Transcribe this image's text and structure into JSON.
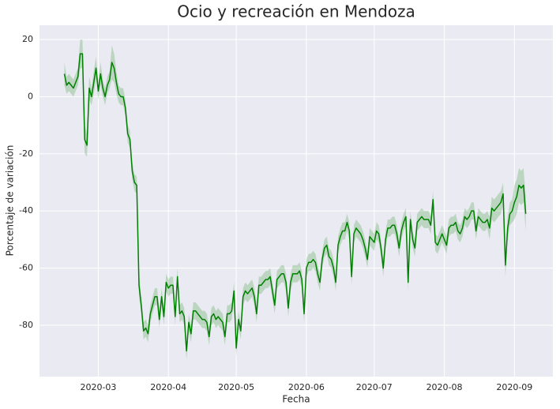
{
  "chart_data": {
    "type": "line",
    "title": "Ocio y recreación en Mendoza",
    "xlabel": "Fecha",
    "ylabel": "Porcentaje de variación",
    "color": "green",
    "band_color": "rgba(0,128,0,0.2)",
    "grid": true,
    "xlim": [
      "2020-02-04",
      "2020-09-18"
    ],
    "xticks": [
      {
        "value": "2020-03-01",
        "label": "2020-03"
      },
      {
        "value": "2020-04-01",
        "label": "2020-04"
      },
      {
        "value": "2020-05-01",
        "label": "2020-05"
      },
      {
        "value": "2020-06-01",
        "label": "2020-06"
      },
      {
        "value": "2020-07-01",
        "label": "2020-07"
      },
      {
        "value": "2020-08-01",
        "label": "2020-08"
      },
      {
        "value": "2020-09-01",
        "label": "2020-09"
      }
    ],
    "ylim": [
      -98,
      25
    ],
    "yticks": [
      -80,
      -60,
      -40,
      -20,
      0,
      20
    ],
    "x": [
      "2020-02-15",
      "2020-02-16",
      "2020-02-17",
      "2020-02-18",
      "2020-02-19",
      "2020-02-20",
      "2020-02-21",
      "2020-02-22",
      "2020-02-23",
      "2020-02-24",
      "2020-02-25",
      "2020-02-26",
      "2020-02-27",
      "2020-02-28",
      "2020-02-29",
      "2020-03-01",
      "2020-03-02",
      "2020-03-03",
      "2020-03-04",
      "2020-03-05",
      "2020-03-06",
      "2020-03-07",
      "2020-03-08",
      "2020-03-09",
      "2020-03-10",
      "2020-03-11",
      "2020-03-12",
      "2020-03-13",
      "2020-03-14",
      "2020-03-15",
      "2020-03-16",
      "2020-03-17",
      "2020-03-18",
      "2020-03-19",
      "2020-03-20",
      "2020-03-21",
      "2020-03-22",
      "2020-03-23",
      "2020-03-24",
      "2020-03-25",
      "2020-03-26",
      "2020-03-27",
      "2020-03-28",
      "2020-03-29",
      "2020-03-30",
      "2020-03-31",
      "2020-04-01",
      "2020-04-02",
      "2020-04-03",
      "2020-04-04",
      "2020-04-05",
      "2020-04-06",
      "2020-04-07",
      "2020-04-08",
      "2020-04-09",
      "2020-04-10",
      "2020-04-11",
      "2020-04-12",
      "2020-04-13",
      "2020-04-14",
      "2020-04-15",
      "2020-04-16",
      "2020-04-17",
      "2020-04-18",
      "2020-04-19",
      "2020-04-20",
      "2020-04-21",
      "2020-04-22",
      "2020-04-23",
      "2020-04-24",
      "2020-04-25",
      "2020-04-26",
      "2020-04-27",
      "2020-04-28",
      "2020-04-29",
      "2020-04-30",
      "2020-05-01",
      "2020-05-02",
      "2020-05-03",
      "2020-05-04",
      "2020-05-05",
      "2020-05-06",
      "2020-05-07",
      "2020-05-08",
      "2020-05-09",
      "2020-05-10",
      "2020-05-11",
      "2020-05-12",
      "2020-05-13",
      "2020-05-14",
      "2020-05-15",
      "2020-05-16",
      "2020-05-17",
      "2020-05-18",
      "2020-05-19",
      "2020-05-20",
      "2020-05-21",
      "2020-05-22",
      "2020-05-23",
      "2020-05-24",
      "2020-05-25",
      "2020-05-26",
      "2020-05-27",
      "2020-05-28",
      "2020-05-29",
      "2020-05-30",
      "2020-05-31",
      "2020-06-01",
      "2020-06-02",
      "2020-06-03",
      "2020-06-04",
      "2020-06-05",
      "2020-06-06",
      "2020-06-07",
      "2020-06-08",
      "2020-06-09",
      "2020-06-10",
      "2020-06-11",
      "2020-06-12",
      "2020-06-13",
      "2020-06-14",
      "2020-06-15",
      "2020-06-16",
      "2020-06-17",
      "2020-06-18",
      "2020-06-19",
      "2020-06-20",
      "2020-06-21",
      "2020-06-22",
      "2020-06-23",
      "2020-06-24",
      "2020-06-25",
      "2020-06-26",
      "2020-06-27",
      "2020-06-28",
      "2020-06-29",
      "2020-06-30",
      "2020-07-01",
      "2020-07-02",
      "2020-07-03",
      "2020-07-04",
      "2020-07-05",
      "2020-07-06",
      "2020-07-07",
      "2020-07-08",
      "2020-07-09",
      "2020-07-10",
      "2020-07-11",
      "2020-07-12",
      "2020-07-13",
      "2020-07-14",
      "2020-07-15",
      "2020-07-16",
      "2020-07-17",
      "2020-07-18",
      "2020-07-19",
      "2020-07-20",
      "2020-07-21",
      "2020-07-22",
      "2020-07-23",
      "2020-07-24",
      "2020-07-25",
      "2020-07-26",
      "2020-07-27",
      "2020-07-28",
      "2020-07-29",
      "2020-07-30",
      "2020-07-31",
      "2020-08-01",
      "2020-08-02",
      "2020-08-03",
      "2020-08-04",
      "2020-08-05",
      "2020-08-06",
      "2020-08-07",
      "2020-08-08",
      "2020-08-09",
      "2020-08-10",
      "2020-08-11",
      "2020-08-12",
      "2020-08-13",
      "2020-08-14",
      "2020-08-15",
      "2020-08-16",
      "2020-08-17",
      "2020-08-18",
      "2020-08-19",
      "2020-08-20",
      "2020-08-21",
      "2020-08-22",
      "2020-08-23",
      "2020-08-24",
      "2020-08-25",
      "2020-08-26",
      "2020-08-27",
      "2020-08-28",
      "2020-08-29",
      "2020-08-30",
      "2020-08-31",
      "2020-09-01",
      "2020-09-02",
      "2020-09-03",
      "2020-09-04",
      "2020-09-05",
      "2020-09-06"
    ],
    "values": [
      8,
      4,
      5,
      4,
      3,
      5,
      7,
      15,
      15,
      -15,
      -17,
      3,
      0,
      5,
      10,
      2,
      8,
      3,
      0,
      4,
      6,
      12,
      10,
      5,
      1,
      0,
      0,
      -4,
      -13,
      -15,
      -26,
      -30,
      -31,
      -66,
      -73,
      -82,
      -81,
      -83,
      -76,
      -73,
      -70,
      -70,
      -78,
      -70,
      -77,
      -65,
      -67,
      -66,
      -66,
      -77,
      -63,
      -76,
      -75,
      -77,
      -89,
      -79,
      -83,
      -75,
      -75,
      -76,
      -77,
      -78,
      -78,
      -79,
      -84,
      -77,
      -76,
      -78,
      -77,
      -78,
      -79,
      -84,
      -76,
      -76,
      -75,
      -68,
      -88,
      -78,
      -82,
      -70,
      -68,
      -69,
      -68,
      -67,
      -70,
      -76,
      -66,
      -66,
      -65,
      -64,
      -64,
      -63,
      -68,
      -73,
      -64,
      -63,
      -62,
      -62,
      -65,
      -74,
      -65,
      -62,
      -62,
      -62,
      -61,
      -64,
      -76,
      -60,
      -58,
      -58,
      -57,
      -58,
      -62,
      -65,
      -57,
      -53,
      -52,
      -56,
      -57,
      -60,
      -65,
      -52,
      -49,
      -47,
      -47,
      -44,
      -47,
      -63,
      -48,
      -46,
      -47,
      -48,
      -50,
      -53,
      -57,
      -49,
      -50,
      -51,
      -47,
      -48,
      -53,
      -60,
      -50,
      -46,
      -46,
      -45,
      -45,
      -48,
      -53,
      -47,
      -44,
      -42,
      -65,
      -43,
      -50,
      -53,
      -44,
      -43,
      -42,
      -43,
      -43,
      -43,
      -45,
      -36,
      -51,
      -52,
      -50,
      -48,
      -50,
      -52,
      -46,
      -45,
      -45,
      -44,
      -47,
      -48,
      -46,
      -42,
      -43,
      -42,
      -40,
      -40,
      -47,
      -42,
      -43,
      -44,
      -44,
      -43,
      -46,
      -39,
      -40,
      -39,
      -38,
      -37,
      -34,
      -59,
      -46,
      -41,
      -40,
      -37,
      -35,
      -31,
      -32,
      -31,
      -41
    ],
    "errors": [
      4,
      3,
      3,
      3,
      3,
      3,
      3,
      5,
      5,
      5,
      4,
      4,
      3,
      4,
      4,
      3,
      4,
      3,
      3,
      3,
      3,
      6,
      5,
      4,
      3,
      3,
      3,
      3,
      3,
      3,
      3,
      3,
      3,
      4,
      3,
      3,
      3,
      3,
      3,
      3,
      3,
      3,
      3,
      3,
      3,
      3,
      3,
      3,
      3,
      3,
      3,
      3,
      3,
      3,
      3,
      3,
      3,
      3,
      3,
      3,
      3,
      3,
      3,
      3,
      3,
      3,
      3,
      3,
      3,
      3,
      3,
      3,
      3,
      3,
      3,
      3,
      3,
      3,
      3,
      3,
      3,
      3,
      3,
      3,
      3,
      3,
      3,
      3,
      3,
      3,
      3,
      3,
      3,
      3,
      3,
      3,
      3,
      3,
      3,
      3,
      3,
      3,
      3,
      3,
      3,
      3,
      3,
      3,
      3,
      3,
      3,
      3,
      3,
      3,
      3,
      3,
      3,
      3,
      3,
      3,
      3,
      3,
      3,
      3,
      3,
      3,
      3,
      3,
      3,
      3,
      3,
      3,
      3,
      3,
      3,
      3,
      3,
      3,
      3,
      3,
      3,
      3,
      3,
      3,
      3,
      3,
      3,
      3,
      3,
      3,
      3,
      3,
      3,
      3,
      3,
      3,
      3,
      3,
      3,
      3,
      3,
      3,
      3,
      3,
      3,
      3,
      3,
      3,
      3,
      3,
      3,
      3,
      3,
      3,
      3,
      3,
      3,
      3,
      3,
      3,
      3,
      3,
      3,
      3,
      3,
      3,
      3,
      3,
      4,
      4,
      4,
      4,
      4,
      4,
      4,
      4,
      4,
      4,
      4,
      6,
      6,
      6,
      6,
      6,
      6
    ]
  }
}
